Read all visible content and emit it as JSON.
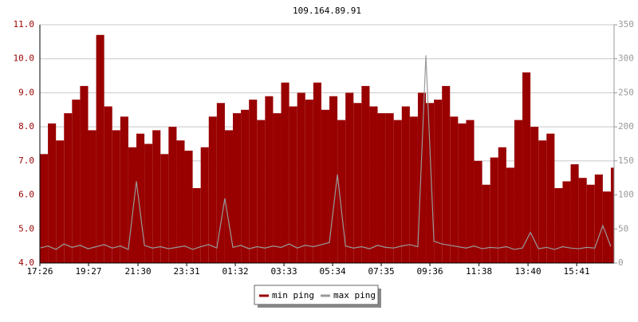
{
  "chart_data": {
    "type": "line",
    "title": "109.164.89.91",
    "x": [
      1046,
      1066,
      1086,
      1106,
      1126,
      1146,
      1166,
      1186,
      1206,
      1226,
      1246,
      1266,
      1286,
      1306,
      1326,
      1346,
      1366,
      1386,
      1406,
      1426,
      1446,
      1466,
      1486,
      1506,
      1526,
      1546,
      1566,
      1586,
      1606,
      1626,
      1646,
      1666,
      1686,
      1706,
      1726,
      1746,
      1766,
      1786,
      1806,
      1826,
      1846,
      1866,
      1886,
      1906,
      1926,
      1946,
      1966,
      1986,
      2006,
      2026,
      2046,
      2066,
      2086,
      2106,
      2126,
      2146,
      2166,
      2186,
      2206,
      2226,
      2246,
      2266,
      2286,
      2306,
      2326,
      2346,
      2366,
      2386,
      2406,
      2426,
      2446,
      2466
    ],
    "xlim": [
      1046,
      2474
    ],
    "xticks": [
      {
        "value": 1046,
        "label": "17:26"
      },
      {
        "value": 1167,
        "label": "19:27"
      },
      {
        "value": 1290,
        "label": "21:30"
      },
      {
        "value": 1411,
        "label": "23:31"
      },
      {
        "value": 1532,
        "label": "01:32"
      },
      {
        "value": 1653,
        "label": "03:33"
      },
      {
        "value": 1774,
        "label": "05:34"
      },
      {
        "value": 1895,
        "label": "07:35"
      },
      {
        "value": 2016,
        "label": "09:36"
      },
      {
        "value": 2138,
        "label": "11:38"
      },
      {
        "value": 2260,
        "label": "13:40"
      },
      {
        "value": 2381,
        "label": "15:41"
      }
    ],
    "ylim": [
      4,
      11
    ],
    "yticks": [
      {
        "value": 4,
        "label": "4.0"
      },
      {
        "value": 5,
        "label": "5.0"
      },
      {
        "value": 6,
        "label": "6.0"
      },
      {
        "value": 7,
        "label": "7.0"
      },
      {
        "value": 8,
        "label": "8.0"
      },
      {
        "value": 9,
        "label": "9.0"
      },
      {
        "value": 10,
        "label": "10.0"
      },
      {
        "value": 11,
        "label": "11.0"
      }
    ],
    "y2lim": [
      0,
      350
    ],
    "y2ticks": [
      0,
      50,
      100,
      150,
      200,
      250,
      300,
      350
    ],
    "grid": true,
    "legend": "bottom",
    "series": [
      {
        "name": "min ping",
        "color": "#990000",
        "style": "area",
        "values": [
          7.2,
          8.1,
          7.6,
          8.4,
          8.8,
          9.2,
          7.9,
          10.7,
          8.6,
          7.9,
          8.3,
          7.4,
          7.8,
          7.5,
          7.9,
          7.2,
          8.0,
          7.6,
          7.3,
          6.2,
          7.4,
          8.3,
          8.7,
          7.9,
          8.4,
          8.5,
          8.8,
          8.2,
          8.9,
          8.4,
          9.3,
          8.6,
          9.0,
          8.8,
          9.3,
          8.5,
          8.9,
          8.2,
          9.0,
          8.7,
          9.2,
          8.6,
          8.4,
          8.4,
          8.2,
          8.6,
          8.3,
          9.0,
          8.7,
          8.8,
          9.2,
          8.3,
          8.1,
          8.2,
          7.0,
          6.3,
          7.1,
          7.4,
          6.8,
          8.2,
          9.6,
          8.0,
          7.6,
          7.8,
          6.2,
          6.4,
          6.9,
          6.5,
          6.3,
          6.6,
          6.1,
          6.8
        ]
      },
      {
        "name": "max ping",
        "color": "#999999",
        "style": "line",
        "axis": "y2",
        "values": [
          22,
          25,
          20,
          28,
          23,
          26,
          21,
          24,
          27,
          22,
          25,
          20,
          120,
          26,
          22,
          24,
          21,
          23,
          25,
          20,
          24,
          27,
          22,
          95,
          23,
          26,
          21,
          24,
          22,
          25,
          23,
          28,
          22,
          26,
          24,
          27,
          30,
          130,
          25,
          22,
          24,
          21,
          26,
          23,
          22,
          25,
          27,
          24,
          305,
          32,
          28,
          26,
          24,
          22,
          25,
          21,
          23,
          22,
          24,
          20,
          22,
          45,
          21,
          23,
          20,
          24,
          22,
          21,
          23,
          22,
          55,
          24
        ]
      }
    ]
  }
}
